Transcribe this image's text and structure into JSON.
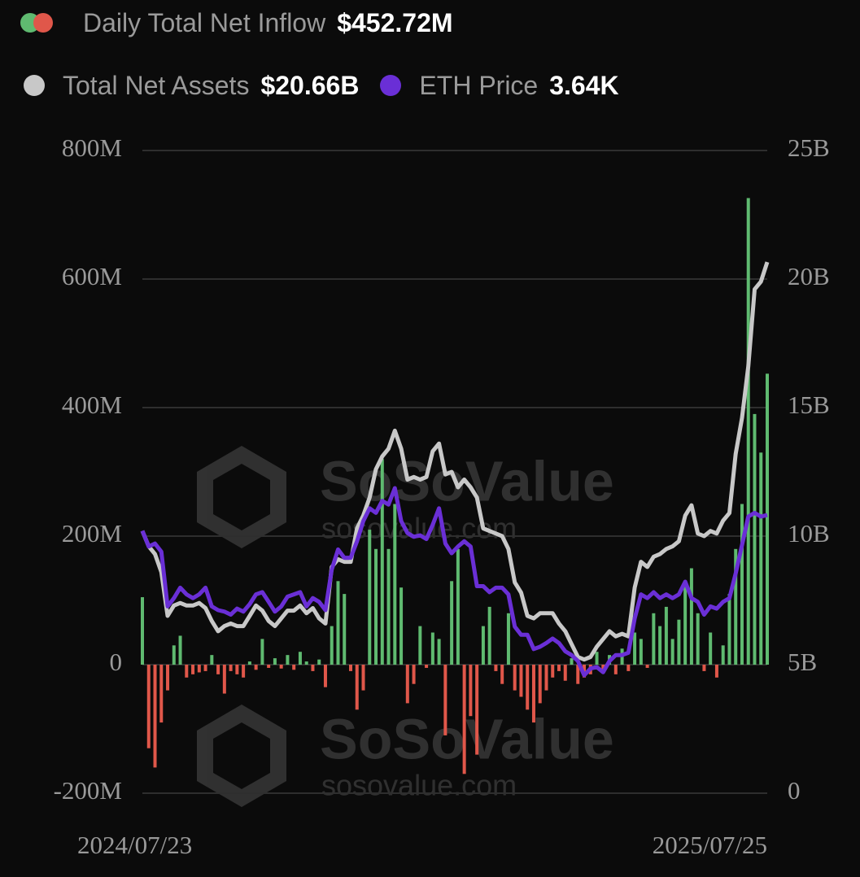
{
  "chart_data": {
    "type": "bar-line",
    "watermark": {
      "brand": "SoSoValue",
      "site": "sosovalue.com"
    },
    "categories": [
      "2024/07/23",
      null,
      null,
      null,
      null,
      null,
      null,
      null,
      null,
      null,
      null,
      null,
      null,
      null,
      null,
      null,
      null,
      null,
      null,
      null,
      null,
      null,
      null,
      null,
      null,
      null,
      null,
      null,
      null,
      null,
      null,
      null,
      null,
      null,
      null,
      null,
      null,
      null,
      null,
      null,
      null,
      null,
      null,
      null,
      null,
      null,
      null,
      null,
      null,
      null,
      null,
      null,
      null,
      null,
      null,
      null,
      null,
      null,
      null,
      null,
      null,
      null,
      null,
      null,
      null,
      null,
      null,
      null,
      null,
      null,
      null,
      null,
      null,
      null,
      null,
      null,
      null,
      null,
      null,
      null,
      null,
      null,
      null,
      null,
      null,
      null,
      null,
      null,
      null,
      null,
      null,
      null,
      null,
      null,
      null,
      null,
      null,
      null,
      null,
      "2025/07/25"
    ],
    "series": [
      {
        "name": "Daily Total Net Inflow",
        "latest": "$452.72M",
        "type": "bar",
        "color": "#5fba70",
        "negative_color": "#e0574a",
        "values": [
          105,
          -130,
          -160,
          -90,
          -40,
          30,
          45,
          -20,
          -15,
          -12,
          -10,
          15,
          -15,
          -45,
          -10,
          -15,
          -20,
          5,
          -8,
          40,
          -5,
          10,
          -6,
          15,
          -8,
          20,
          5,
          -10,
          8,
          -35,
          60,
          130,
          110,
          -10,
          -70,
          -40,
          210,
          180,
          320,
          180,
          250,
          120,
          -60,
          -30,
          60,
          -5,
          50,
          40,
          -110,
          130,
          180,
          -170,
          -80,
          -140,
          60,
          90,
          -10,
          -30,
          80,
          -40,
          -50,
          -70,
          -90,
          -60,
          -40,
          -20,
          -10,
          -25,
          10,
          -30,
          -20,
          -15,
          20,
          -10,
          15,
          -15,
          25,
          -10,
          50,
          40,
          -5,
          80,
          60,
          90,
          40,
          70,
          130,
          150,
          80,
          -10,
          50,
          -20,
          30,
          110,
          180,
          250,
          726,
          390,
          330,
          452.72
        ]
      },
      {
        "name": "Total Net Assets",
        "latest": "$20.66B",
        "type": "line",
        "axis": "y2",
        "color": "#c8c8c8",
        "values": [
          10.2,
          9.6,
          9.3,
          8.6,
          6.9,
          7.3,
          7.4,
          7.3,
          7.3,
          7.4,
          7.2,
          6.7,
          6.3,
          6.5,
          6.6,
          6.5,
          6.5,
          6.9,
          7.3,
          7.1,
          6.7,
          6.5,
          6.8,
          7.1,
          7.1,
          7.3,
          7.0,
          7.2,
          6.8,
          6.6,
          8.8,
          9.1,
          9.0,
          9.0,
          10.3,
          10.8,
          11.5,
          12.6,
          13.1,
          13.4,
          14.1,
          13.4,
          12.2,
          12.3,
          12.2,
          12.3,
          13.3,
          13.6,
          12.4,
          12.5,
          11.9,
          12.2,
          11.9,
          11.5,
          10.3,
          10.2,
          10.1,
          10.0,
          9.5,
          8.2,
          7.8,
          6.9,
          6.8,
          7.0,
          7.0,
          7.0,
          6.6,
          6.3,
          5.8,
          5.3,
          5.2,
          5.3,
          5.7,
          6.0,
          6.3,
          6.1,
          6.2,
          6.1,
          8.0,
          9.0,
          8.8,
          9.2,
          9.3,
          9.5,
          9.6,
          9.8,
          10.8,
          11.2,
          10.1,
          10.0,
          10.2,
          10.1,
          10.6,
          10.9,
          13.2,
          14.6,
          16.6,
          19.6,
          19.9,
          20.66
        ]
      },
      {
        "name": "ETH Price",
        "latest": "3.64K",
        "type": "line",
        "axis": "hidden",
        "color": "#6a2fd6",
        "values": [
          3.43,
          3.22,
          3.26,
          3.15,
          2.42,
          2.53,
          2.67,
          2.58,
          2.53,
          2.58,
          2.67,
          2.42,
          2.37,
          2.35,
          2.31,
          2.39,
          2.35,
          2.45,
          2.58,
          2.61,
          2.48,
          2.35,
          2.42,
          2.55,
          2.58,
          2.61,
          2.42,
          2.53,
          2.48,
          2.37,
          2.91,
          3.18,
          3.07,
          3.07,
          3.29,
          3.56,
          3.73,
          3.67,
          3.83,
          3.78,
          4.0,
          3.56,
          3.4,
          3.35,
          3.37,
          3.32,
          3.51,
          3.73,
          3.26,
          3.13,
          3.22,
          3.29,
          3.22,
          2.69,
          2.69,
          2.61,
          2.67,
          2.67,
          2.58,
          2.15,
          2.04,
          2.04,
          1.85,
          1.88,
          1.93,
          1.99,
          1.93,
          1.82,
          1.77,
          1.69,
          1.5,
          1.59,
          1.61,
          1.54,
          1.69,
          1.77,
          1.77,
          1.8,
          2.26,
          2.58,
          2.53,
          2.61,
          2.53,
          2.58,
          2.53,
          2.58,
          2.75,
          2.53,
          2.48,
          2.31,
          2.42,
          2.39,
          2.48,
          2.53,
          2.86,
          3.24,
          3.62,
          3.67,
          3.62,
          3.64
        ]
      }
    ],
    "ylim": [
      -200,
      800
    ],
    "yticks": [
      {
        "value": -200,
        "label": "-200M"
      },
      0,
      {
        "value": 200,
        "label": "200M"
      },
      {
        "value": 400,
        "label": "400M"
      },
      {
        "value": 600,
        "label": "600M"
      },
      {
        "value": 800,
        "label": "800M"
      }
    ],
    "y2lim": [
      0,
      25
    ],
    "y2ticks": [
      0,
      {
        "value": 5,
        "label": "5B"
      },
      {
        "value": 10,
        "label": "10B"
      },
      {
        "value": 15,
        "label": "15B"
      },
      {
        "value": 20,
        "label": "20B"
      },
      {
        "value": 25,
        "label": "25B"
      }
    ],
    "grid": true
  }
}
